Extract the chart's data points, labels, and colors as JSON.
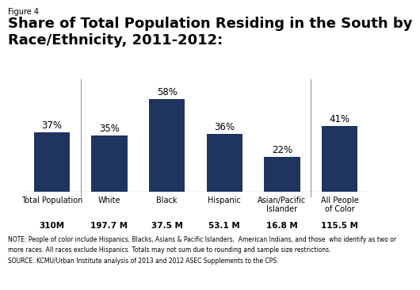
{
  "figure_label": "Figure 4",
  "title": "Share of Total Population Residing in the South by\nRace/Ethnicity, 2011-2012:",
  "categories": [
    "Total Population",
    "White",
    "Black",
    "Hispanic",
    "Asian/Pacific\nIslander",
    "All People\nof Color"
  ],
  "values": [
    37,
    35,
    58,
    36,
    22,
    41
  ],
  "subtitles": [
    "310M",
    "197.7 M",
    "37.5 M",
    "53.1 M",
    "16.8 M",
    "115.5 M"
  ],
  "bar_color": "#1f3560",
  "bg_color": "#f0ede8",
  "note_line1": "NOTE: People of color include Hispanics, Blacks, Asians & Pacific Islanders,  American Indians, and those  who identify as two or",
  "note_line2": "more races. All races exclude Hispanics. Totals may not sum due to rounding and sample size restrictions.",
  "note_line3": "SOURCE: KCMU/Urban Institute analysis of 2013 and 2012 ASEC Supplements to the CPS.",
  "ylim": [
    0,
    70
  ],
  "figure_label_fontsize": 7,
  "title_fontsize": 13,
  "value_fontsize": 8.5,
  "cat_fontsize": 7,
  "sub_fontsize": 7.5,
  "note_fontsize": 5.5
}
